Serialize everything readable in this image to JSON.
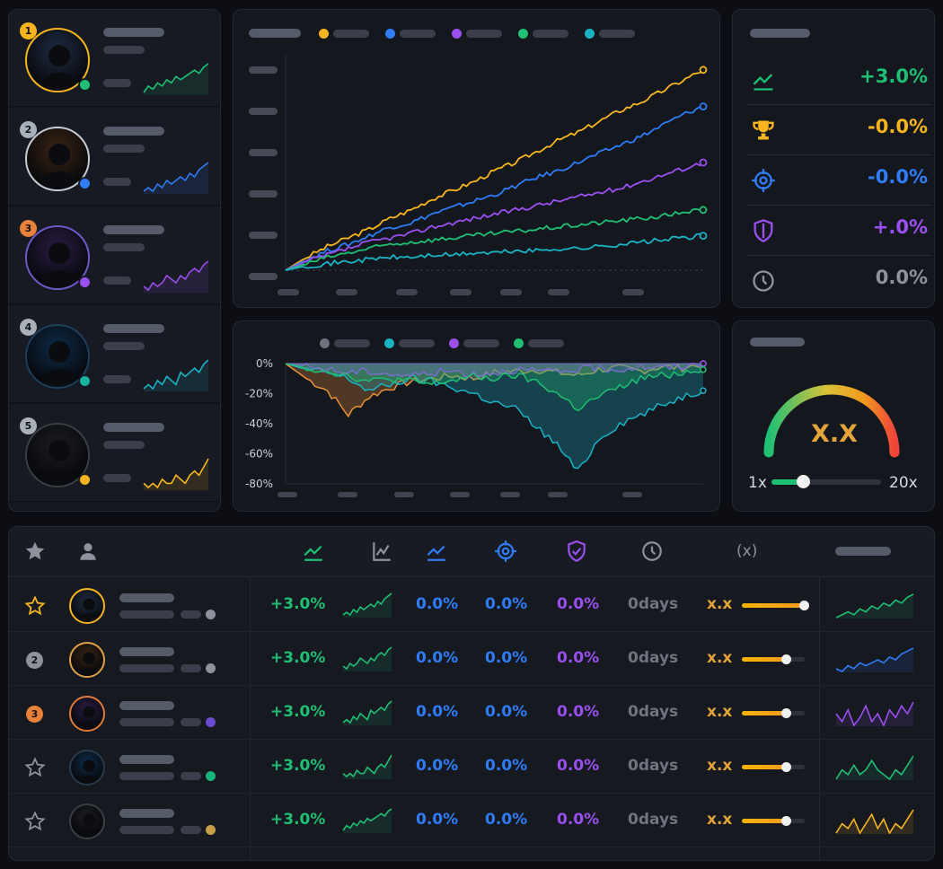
{
  "colors": {
    "gold": "#f6b51e",
    "blue": "#2f7cf6",
    "purple": "#9b4ff0",
    "green": "#1fbf74",
    "teal": "#1ab3c4",
    "gray": "#8d929c",
    "orange": "#e8813a"
  },
  "traders": [
    {
      "rank": "1",
      "rank_color": "#f6b51e",
      "status_color": "#1fbf74",
      "spark_color": "#1fbf74",
      "avatar_color": "#1f2c44",
      "avatar_ring": "#f6b51e"
    },
    {
      "rank": "2",
      "rank_color": "#aab0ba",
      "status_color": "#2f7cf6",
      "spark_color": "#2f7cf6",
      "avatar_color": "#3a2414",
      "avatar_ring": "#c6cad2"
    },
    {
      "rank": "3",
      "rank_color": "#e8813a",
      "status_color": "#9b4ff0",
      "spark_color": "#9b4ff0",
      "avatar_color": "#2a1c45",
      "avatar_ring": "#6c58c8"
    },
    {
      "rank": "4",
      "rank_color": "#aab0ba",
      "status_color": "#1ab3a0",
      "spark_color": "#1ab3c4",
      "avatar_color": "#0d2c4a",
      "avatar_ring": "#1d3e5c"
    },
    {
      "rank": "5",
      "rank_color": "#aab0ba",
      "status_color": "#f6b51e",
      "spark_color": "#f6b51e",
      "avatar_color": "#1b1d22",
      "avatar_ring": "#3a3d44"
    }
  ],
  "performance_chart": {
    "legend_colors": [
      "#f6b51e",
      "#2f7cf6",
      "#9b4ff0",
      "#1fbf74",
      "#1ab3c4"
    ]
  },
  "chart_data": [
    {
      "type": "line",
      "x": [
        0,
        1,
        2,
        3,
        4,
        5,
        6,
        7,
        8,
        9,
        10,
        11,
        12,
        13,
        14,
        15,
        16,
        17,
        18,
        19,
        20
      ],
      "series": [
        {
          "color": "#f6b51e",
          "values": [
            0,
            6,
            11,
            15,
            19,
            24,
            28,
            33,
            37,
            41,
            46,
            50,
            55,
            60,
            64,
            69,
            74,
            78,
            83,
            88,
            93
          ]
        },
        {
          "color": "#2f7cf6",
          "values": [
            0,
            5,
            9,
            12,
            16,
            20,
            22,
            26,
            29,
            32,
            35,
            39,
            43,
            46,
            50,
            54,
            58,
            62,
            67,
            72,
            76
          ]
        },
        {
          "color": "#9b4ff0",
          "values": [
            0,
            4,
            7,
            10,
            13,
            15,
            17,
            20,
            22,
            24,
            26,
            28,
            30,
            32,
            34,
            36,
            38,
            41,
            44,
            47,
            50
          ]
        },
        {
          "color": "#1fbf74",
          "values": [
            0,
            3,
            6,
            8,
            10,
            12,
            13,
            14,
            15,
            16,
            17,
            18,
            19,
            20,
            21,
            22,
            23,
            24,
            25,
            27,
            28
          ]
        },
        {
          "color": "#1ab3c4",
          "values": [
            0,
            2,
            3,
            4,
            5,
            6,
            6,
            7,
            7,
            8,
            8,
            9,
            9,
            10,
            10,
            11,
            12,
            13,
            14,
            15,
            16
          ]
        }
      ],
      "ylim": [
        0,
        100
      ]
    },
    {
      "type": "area",
      "x": [
        0,
        1,
        2,
        3,
        4,
        5,
        6,
        7,
        8,
        9,
        10,
        11,
        12,
        13,
        14,
        15,
        16,
        17,
        18,
        19,
        20
      ],
      "series": [
        {
          "color": "#e8913a",
          "values": [
            0,
            -10,
            -18,
            -34,
            -22,
            -16,
            -12,
            -10,
            -8,
            -10,
            -6,
            -5,
            -4,
            -6,
            -8,
            -4,
            -3,
            -5,
            -2,
            -3,
            0
          ]
        },
        {
          "color": "#1ab3c4",
          "values": [
            0,
            -4,
            -6,
            -10,
            -18,
            -14,
            -10,
            -12,
            -16,
            -20,
            -26,
            -30,
            -42,
            -54,
            -72,
            -50,
            -40,
            -34,
            -28,
            -22,
            -18
          ]
        },
        {
          "color": "#9b4ff0",
          "values": [
            0,
            -2,
            -4,
            -6,
            -5,
            -7,
            -8,
            -6,
            -5,
            -7,
            -6,
            -4,
            -5,
            -6,
            -4,
            -3,
            -4,
            -2,
            -3,
            -2,
            0
          ]
        },
        {
          "color": "#1fbf74",
          "values": [
            0,
            -3,
            -5,
            -8,
            -12,
            -10,
            -12,
            -14,
            -11,
            -9,
            -10,
            -8,
            -12,
            -20,
            -30,
            -22,
            -16,
            -10,
            -8,
            -6,
            -4
          ]
        }
      ],
      "ylim": [
        -80,
        0
      ],
      "y_ticks": [
        "0%",
        "-20%",
        "-40%",
        "-60%",
        "-80%"
      ]
    }
  ],
  "stats": [
    {
      "icon": "trending-up-icon",
      "color": "#1fbf74",
      "value": "+3.0%"
    },
    {
      "icon": "trophy-icon",
      "color": "#f6b51e",
      "value": "-0.0%"
    },
    {
      "icon": "target-icon",
      "color": "#2f7cf6",
      "value": "-0.0%"
    },
    {
      "icon": "shield-icon",
      "color": "#9b4ff0",
      "value": "+.0%"
    },
    {
      "icon": "clock-icon",
      "color": "#8d929c",
      "value": "0.0%"
    }
  ],
  "leverage": {
    "value": "X.X",
    "min_label": "1x",
    "max_label": "20x",
    "level_fraction": 0.29
  },
  "table": {
    "header_x_label": "(x)",
    "rows": [
      {
        "rank_icon": "star-icon",
        "rank_color": "#f6b51e",
        "return": "+3.0%",
        "win": "0.0%",
        "accuracy": "0.0%",
        "risk": "0.0%",
        "days": "0days",
        "lev_label": "x.x",
        "lev_fraction": 1.0,
        "dot_color": "#8d929c",
        "spark_color": "#1fbf74",
        "avatar_color": "#1f2c44",
        "avatar_ring": "#f6b51e"
      },
      {
        "rank_icon": "rank-2-icon",
        "rank_text": "2",
        "rank_color": "#8d929c",
        "return": "+3.0%",
        "win": "0.0%",
        "accuracy": "0.0%",
        "risk": "0.0%",
        "days": "0days",
        "lev_label": "x.x",
        "lev_fraction": 0.71,
        "dot_color": "#8d929c",
        "spark_color": "#2f7cf6",
        "avatar_color": "#3a2414",
        "avatar_ring": "#e1a04a"
      },
      {
        "rank_icon": "rank-3-icon",
        "rank_text": "3",
        "rank_color": "#e8813a",
        "return": "+3.0%",
        "win": "0.0%",
        "accuracy": "0.0%",
        "risk": "0.0%",
        "days": "0days",
        "lev_label": "x.x",
        "lev_fraction": 0.71,
        "dot_color": "#6c4ad0",
        "spark_color": "#9b4ff0",
        "avatar_color": "#2a1c45",
        "avatar_ring": "#e07a3a"
      },
      {
        "rank_icon": "star-icon",
        "rank_color": "#8d929c",
        "return": "+3.0%",
        "win": "0.0%",
        "accuracy": "0.0%",
        "risk": "0.0%",
        "days": "0days",
        "lev_label": "x.x",
        "lev_fraction": 0.71,
        "dot_color": "#1ab37a",
        "spark_color": "#1fbf74",
        "avatar_color": "#0d2c4a",
        "avatar_ring": "#2a3a4a"
      },
      {
        "rank_icon": "star-icon",
        "rank_color": "#8d929c",
        "return": "+3.0%",
        "win": "0.0%",
        "accuracy": "0.0%",
        "risk": "0.0%",
        "days": "0days",
        "lev_label": "x.x",
        "lev_fraction": 0.71,
        "dot_color": "#c8a04a",
        "spark_color": "#f6b51e",
        "avatar_color": "#1b1d22",
        "avatar_ring": "#3a3d44"
      }
    ]
  }
}
